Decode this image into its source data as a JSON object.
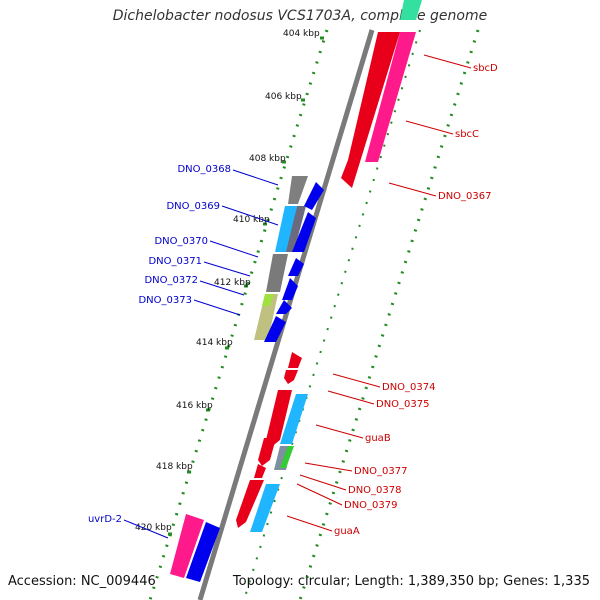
{
  "title": "Dichelobacter nodosus VCS1703A, complete genome",
  "accession": "Accession: NC_009446",
  "topology": "Topology: circular; Length: 1,389,350 bp; Genes: 1,335",
  "ticks": [
    "404 kbp",
    "406 kbp",
    "408 kbp",
    "410 kbp",
    "412 kbp",
    "414 kbp",
    "416 kbp",
    "418 kbp",
    "420 kbp"
  ],
  "colors": {
    "left_label": "#0000cc",
    "right_label": "#cc0000",
    "backbone": "#7a7a7a",
    "tick_green": "#228b22"
  },
  "left_labels": [
    "DNO_0368",
    "DNO_0369",
    "DNO_0370",
    "DNO_0371",
    "DNO_0372",
    "DNO_0373",
    "uvrD-2"
  ],
  "right_labels": [
    "sbcD",
    "sbcC",
    "DNO_0367",
    "DNO_0374",
    "DNO_0375",
    "guaB",
    "DNO_0377",
    "DNO_0378",
    "DNO_0379",
    "guaA"
  ]
}
